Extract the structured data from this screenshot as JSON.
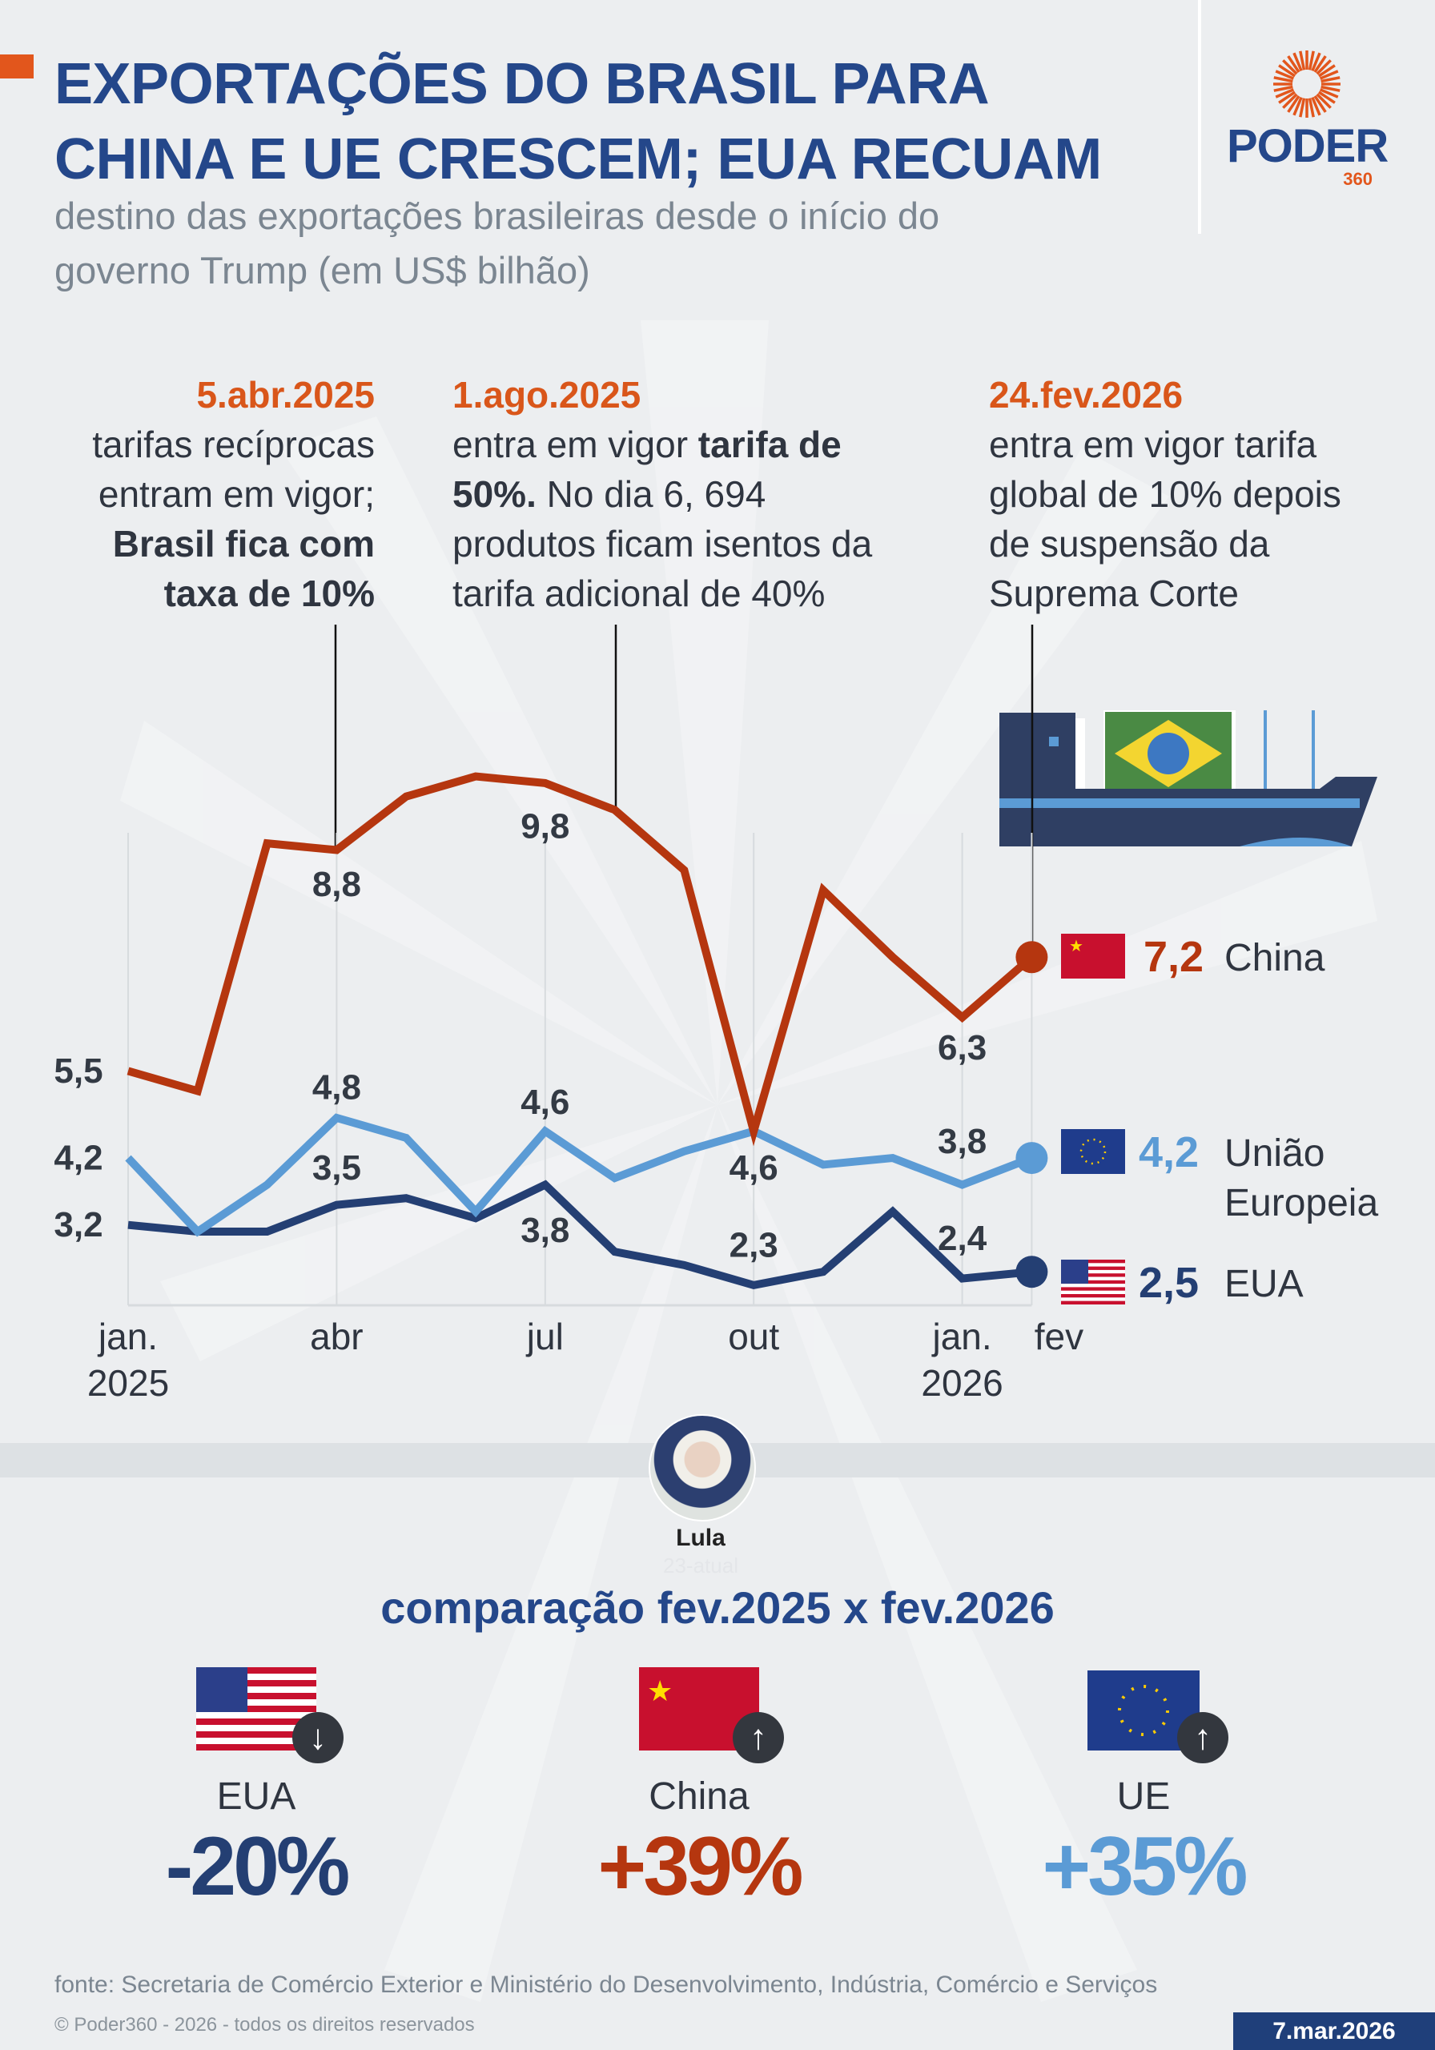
{
  "header": {
    "title_line1": "EXPORTAÇÕES DO BRASIL PARA",
    "title_line2": "CHINA E UE CRESCEM; EUA RECUAM",
    "subtitle_line1": "destino das exportações brasileiras desde o início do",
    "subtitle_line2": "governo Trump (em US$ bilhão)",
    "logo_text": "PODER",
    "logo_sub": "360"
  },
  "annotations": {
    "a1": {
      "date": "5.abr.2025",
      "l1": "tarifas recíprocas",
      "l2": "entram em vigor;",
      "l3b": "Brasil fica com",
      "l4b": "taxa de 10%"
    },
    "a2": {
      "date": "1.ago.2025",
      "l1": "entra em vigor ",
      "l1b": "tarifa de",
      "l2b": "50%.",
      "l2": " No dia 6, 694",
      "l3": "produtos ficam isentos da",
      "l4": "tarifa adicional de 40%"
    },
    "a3": {
      "date": "24.fev.2026",
      "l1": "entra em vigor tarifa",
      "l2": "global de 10% depois",
      "l3": "de suspensão da",
      "l4": "Suprema Corte"
    }
  },
  "chart_data": {
    "type": "line",
    "x": [
      "jan.2025",
      "fev.2025",
      "mar.2025",
      "abr.2025",
      "mai.2025",
      "jun.2025",
      "jul.2025",
      "ago.2025",
      "set.2025",
      "out.2025",
      "nov.2025",
      "dez.2025",
      "jan.2026",
      "fev.2026"
    ],
    "x_tick_labels": [
      {
        "index": 0,
        "l1": "jan.",
        "l2": "2025"
      },
      {
        "index": 3,
        "l1": "abr",
        "l2": ""
      },
      {
        "index": 6,
        "l1": "jul",
        "l2": ""
      },
      {
        "index": 9,
        "l1": "out",
        "l2": ""
      },
      {
        "index": 12,
        "l1": "jan.",
        "l2": "2026"
      },
      {
        "index": 13,
        "l1": "fev",
        "l2": ""
      }
    ],
    "ylim": [
      2,
      10
    ],
    "grid": "vertical at labeled months",
    "series": [
      {
        "key": "china",
        "name": "China",
        "color": "#b5360f",
        "values": [
          5.5,
          5.2,
          8.9,
          8.8,
          9.6,
          9.9,
          9.8,
          9.4,
          8.5,
          4.6,
          8.2,
          7.2,
          6.3,
          7.2
        ]
      },
      {
        "key": "ue",
        "name": "União Europeia",
        "color": "#5b9bd5",
        "values": [
          4.2,
          3.1,
          3.8,
          4.8,
          4.5,
          3.4,
          4.6,
          3.9,
          4.3,
          4.6,
          4.1,
          4.2,
          3.8,
          4.2
        ]
      },
      {
        "key": "eua",
        "name": "EUA",
        "color": "#243f73",
        "values": [
          3.2,
          3.1,
          3.1,
          3.5,
          3.6,
          3.3,
          3.8,
          2.8,
          2.6,
          2.3,
          2.5,
          3.4,
          2.4,
          2.5
        ]
      }
    ],
    "data_labels": [
      {
        "series": 0,
        "index": 0,
        "text": "5,5"
      },
      {
        "series": 1,
        "index": 0,
        "text": "4,2"
      },
      {
        "series": 2,
        "index": 0,
        "text": "3,2"
      },
      {
        "series": 0,
        "index": 3,
        "text": "8,8"
      },
      {
        "series": 0,
        "index": 6,
        "text": "9,8"
      },
      {
        "series": 0,
        "index": 12,
        "text": "6,3"
      },
      {
        "series": 1,
        "index": 3,
        "text": "4,8"
      },
      {
        "series": 2,
        "index": 3,
        "text": "3,5"
      },
      {
        "series": 1,
        "index": 6,
        "text": "4,6"
      },
      {
        "series": 2,
        "index": 6,
        "text": "3,8"
      },
      {
        "series": 0,
        "index": 9,
        "text": "4,6"
      },
      {
        "series": 2,
        "index": 9,
        "text": "2,3"
      },
      {
        "series": 1,
        "index": 12,
        "text": "3,8"
      },
      {
        "series": 2,
        "index": 12,
        "text": "2,4"
      }
    ],
    "legend": [
      {
        "flag": "china-flag",
        "value": "7,2",
        "name_l1": "China",
        "name_l2": ""
      },
      {
        "flag": "eu-flag",
        "value": "4,2",
        "name_l1": "União",
        "name_l2": "Europeia"
      },
      {
        "flag": "us-flag",
        "value": "2,5",
        "name_l1": "EUA",
        "name_l2": ""
      }
    ],
    "legend_placement": "right"
  },
  "photo": {
    "name": "Lula",
    "caption": "23-atual"
  },
  "comparison": {
    "title": "comparação fev.2025 x fev.2026",
    "items": [
      {
        "name": "EUA",
        "change": "-20%",
        "direction": "down",
        "color": "#243f73",
        "flag": "us-flag"
      },
      {
        "name": "China",
        "change": "+39%",
        "direction": "up",
        "color": "#b5360f",
        "flag": "china-flag"
      },
      {
        "name": "UE",
        "change": "+35%",
        "direction": "up",
        "color": "#5b9bd5",
        "flag": "eu-flag"
      }
    ]
  },
  "footer": {
    "source": "fonte: Secretaria de Comércio Exterior e Ministério do Desenvolvimento, Indústria, Comércio e Serviços",
    "copyright": "© Poder360 - 2026 - todos os direitos reservados",
    "date": "7.mar.2026"
  }
}
